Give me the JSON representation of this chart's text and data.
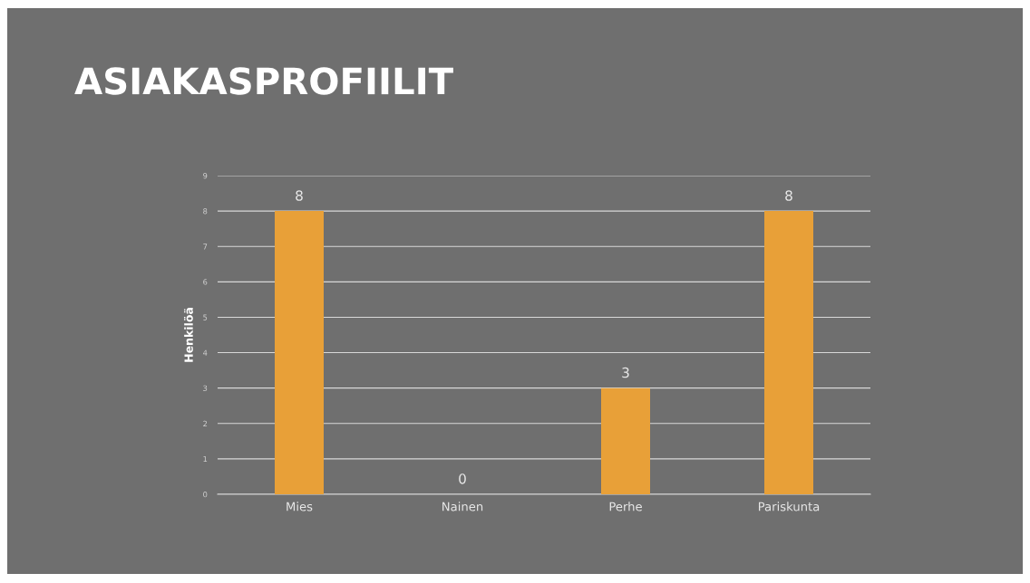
{
  "chart_data": {
    "type": "bar",
    "title": "ASIAKASPROFIILIT",
    "ylabel": "Henkilöä",
    "categories": [
      "Mies",
      "Nainen",
      "Perhe",
      "Pariskunta"
    ],
    "values": [
      8,
      0,
      3,
      8
    ],
    "color": "#e8a038",
    "ylim": [
      0,
      9
    ],
    "yticks": [
      0,
      1,
      2,
      3,
      4,
      5,
      6,
      7,
      8,
      9
    ],
    "grid": "y",
    "data_labels": true
  }
}
